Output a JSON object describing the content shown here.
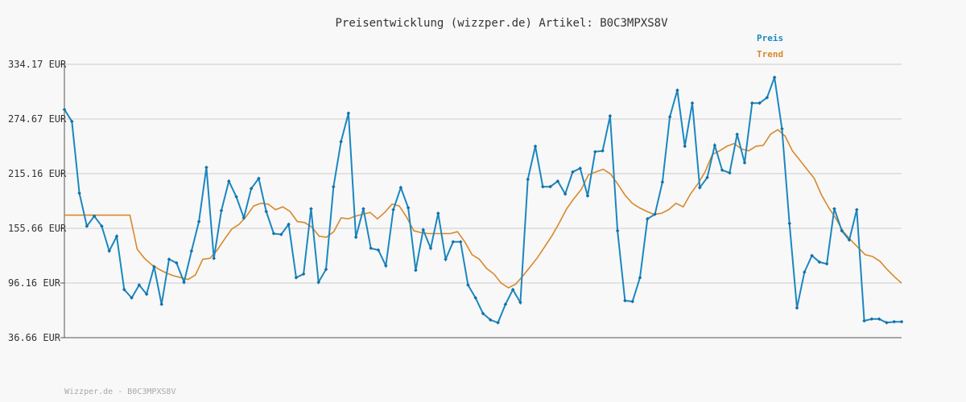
{
  "chart_data": {
    "type": "line",
    "title": "Preisentwicklung (wizzper.de) Artikel: B0C3MPXS8V",
    "footer": "Wizzper.de - B0C3MPXS8V",
    "xlabel": "",
    "ylabel": "",
    "ylim": [
      36.66,
      334.17
    ],
    "y_ticks": [
      "334.17 EUR",
      "274.67 EUR",
      "215.16 EUR",
      "155.66 EUR",
      "96.16 EUR",
      "36.66 EUR"
    ],
    "y_tick_values": [
      334.17,
      274.67,
      215.16,
      155.66,
      96.16,
      36.66
    ],
    "grid": true,
    "legend_position": "top-right",
    "series": [
      {
        "name": "Preis",
        "color": "#1a87c0",
        "values": [
          285,
          272,
          194,
          158,
          169,
          158,
          131,
          147,
          89,
          80,
          94,
          84,
          114,
          73,
          122,
          118,
          97,
          131,
          163,
          222,
          123,
          175,
          207,
          190,
          167,
          199,
          210,
          174,
          150,
          149,
          160,
          102,
          106,
          177,
          97,
          111,
          201,
          250,
          281,
          146,
          177,
          134,
          132,
          115,
          176,
          200,
          178,
          110,
          154,
          134,
          172,
          122,
          141,
          141,
          94,
          80,
          63,
          56,
          53,
          73,
          89,
          75,
          209,
          245,
          201,
          201,
          207,
          193,
          217,
          221,
          191,
          239,
          240,
          278,
          153,
          77,
          76,
          102,
          166,
          171,
          206,
          277,
          306,
          245,
          292,
          200,
          211,
          246,
          219,
          216,
          258,
          227,
          292,
          292,
          298,
          320,
          264,
          161,
          69,
          108,
          126,
          119,
          117,
          177,
          153,
          143,
          176,
          55,
          57,
          57,
          53,
          54,
          54
        ],
        "x_range": [
          0,
          1120
        ]
      },
      {
        "name": "Trend",
        "color": "#d9882a",
        "values": [
          170,
          170,
          170,
          170,
          170,
          170,
          170,
          170,
          170,
          170,
          133,
          123,
          116,
          111,
          107,
          104,
          102,
          100,
          105,
          122,
          123,
          132,
          144,
          155,
          160,
          169,
          180,
          183,
          182,
          176,
          179,
          174,
          163,
          162,
          157,
          147,
          146,
          152,
          167,
          166,
          169,
          171,
          173,
          166,
          173,
          182,
          180,
          168,
          153,
          151,
          150,
          150,
          150,
          150,
          152,
          141,
          127,
          122,
          112,
          106,
          96,
          91,
          95,
          104,
          114,
          124,
          136,
          148,
          162,
          177,
          188,
          198,
          214,
          217,
          220,
          215,
          204,
          192,
          183,
          178,
          174,
          171,
          172,
          176,
          183,
          179,
          193,
          204,
          217,
          236,
          240,
          245,
          248,
          242,
          240,
          245,
          246,
          258,
          263,
          256,
          240,
          230,
          220,
          210,
          192,
          178,
          166,
          152,
          143,
          135,
          127,
          125,
          120,
          111,
          103,
          96
        ]
      }
    ]
  }
}
